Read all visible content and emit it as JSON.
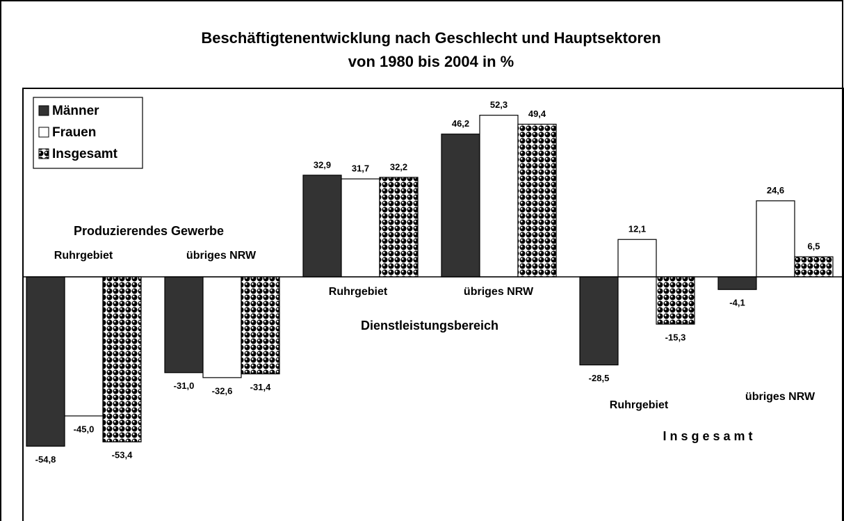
{
  "chart_data": {
    "type": "bar",
    "title": "Beschäftigtenentwicklung nach Geschlecht und Hauptsektoren",
    "subtitle": "von 1980 bis 2004 in %",
    "sectors": [
      "Produzierendes Gewerbe",
      "Dienstleistungsbereich",
      "I n s g e s a m t"
    ],
    "categories": [
      "Ruhrgebiet",
      "übriges NRW",
      "Ruhrgebiet",
      "übriges NRW",
      "Ruhrgebiet",
      "übriges NRW"
    ],
    "series": [
      {
        "name": "Männer",
        "color": "#333333",
        "values": [
          -54.8,
          -31.0,
          32.9,
          46.2,
          -28.5,
          -4.1
        ],
        "value_labels": [
          "-54,8",
          "-31,0",
          "32,9",
          "46,2",
          "-28,5",
          "-4,1"
        ]
      },
      {
        "name": "Frauen",
        "color": "#ffffff",
        "values": [
          -45.0,
          -32.6,
          31.7,
          52.3,
          12.1,
          24.6
        ],
        "value_labels": [
          "-45,0",
          "-32,6",
          "31,7",
          "52,3",
          "12,1",
          "24,6"
        ]
      },
      {
        "name": "Insgesamt",
        "color": "#000000",
        "pattern": "dots",
        "values": [
          -53.4,
          -31.4,
          32.2,
          49.4,
          -15.3,
          6.5
        ],
        "value_labels": [
          "-53,4",
          "-31,4",
          "32,2",
          "49,4",
          "-15,3",
          "6,5"
        ]
      }
    ],
    "ylim": [
      -79,
      61
    ],
    "legend": "top-left"
  }
}
